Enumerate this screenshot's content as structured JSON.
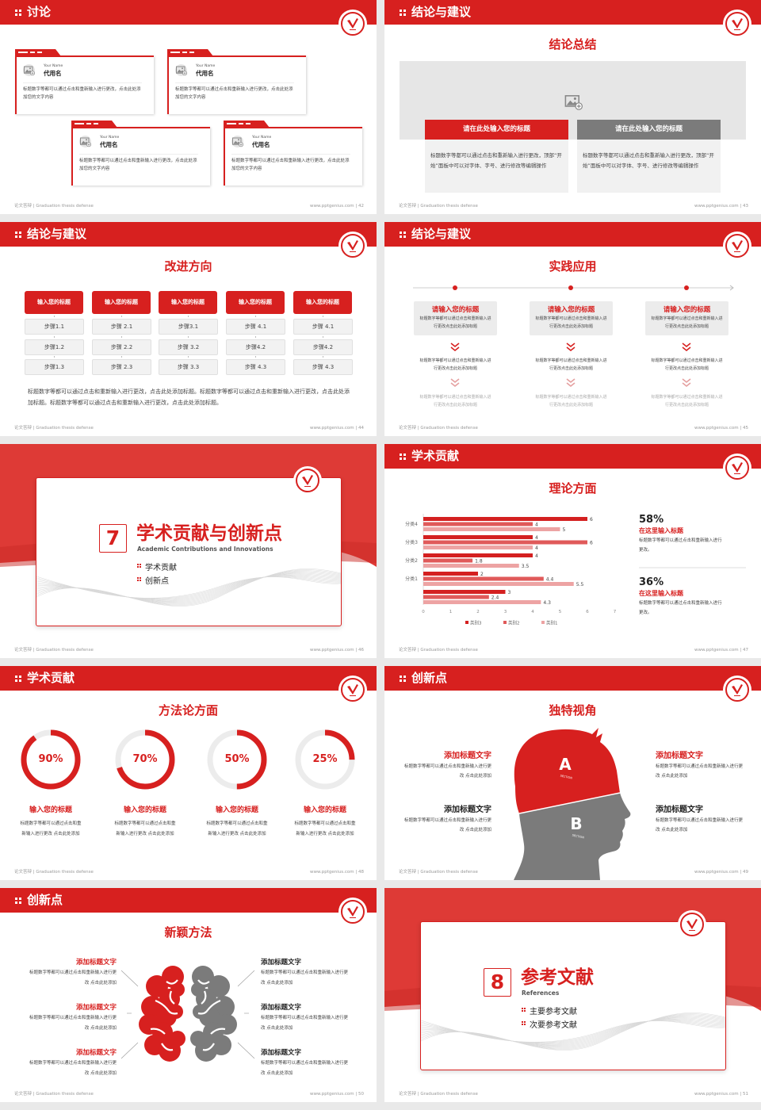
{
  "footer": {
    "left": "论文答辩 | Graduation thesis defense",
    "url": "www.pptgenius.com"
  },
  "colors": {
    "accent": "#d7201f",
    "gray": "#7f7f7f",
    "light": "#f1f1f1"
  },
  "slides": [
    {
      "page": "42",
      "title": "讨论",
      "cards": [
        {
          "name_label": "Your Name",
          "name": "代用名",
          "text": "标题数字等都可以通过点击和重新输入进行更改，点击此处添加您的文字内容",
          "icon": "image-placeholder-icon"
        },
        {
          "name_label": "Your Name",
          "name": "代用名",
          "text": "标题数字等都可以通过点击和重新输入进行更改，点击此处添加您的文字内容",
          "icon": "image-placeholder-icon"
        },
        {
          "name_label": "Your Name",
          "name": "代用名",
          "text": "标题数字等都可以通过点击和重新输入进行更改，点击此处添加您的文字内容",
          "icon": "image-placeholder-icon"
        },
        {
          "name_label": "Your Name",
          "name": "代用名",
          "text": "标题数字等都可以通过点击和重新输入进行更改，点击此处添加您的文字内容",
          "icon": "image-placeholder-icon"
        }
      ]
    },
    {
      "page": "43",
      "title": "结论与建议",
      "subtitle": "结论总结",
      "boxes": [
        {
          "title": "请在此处输入您的标题",
          "text": "标题数字等都可以通过点击和重新输入进行更改，顶部“开始”面板中可以对字体、字号、进行修改等编辑操作"
        },
        {
          "title": "请在此处输入您的标题",
          "text": "标题数字等都可以通过点击和重新输入进行更改，顶部“开始”面板中可以对字体、字号、进行修改等编辑操作"
        }
      ]
    },
    {
      "page": "44",
      "title": "结论与建议",
      "subtitle": "改进方向",
      "columns": [
        {
          "title": "输入您的标题",
          "steps": [
            "步骤1.1",
            "步骤1.2",
            "步骤1.3"
          ]
        },
        {
          "title": "输入您的标题",
          "steps": [
            "步骤 2.1",
            "步骤 2.2",
            "步骤 2.3"
          ]
        },
        {
          "title": "输入您的标题",
          "steps": [
            "步骤3.1",
            "步骤 3.2",
            "步骤 3.3"
          ]
        },
        {
          "title": "输入您的标题",
          "steps": [
            "步骤 4.1",
            "步骤4.2",
            "步骤 4.3"
          ]
        },
        {
          "title": "输入您的标题",
          "steps": [
            "步骤 4.1",
            "步骤4.2",
            "步骤 4.3"
          ]
        }
      ],
      "paragraph": "标题数字等都可以通过点击和重新输入进行更改，点击此处添加标题。标题数字等都可以通过点击和重新输入进行更改，点击此处添加标题。标题数字等都可以通过点击和重新输入进行更改，点击此处添加标题。"
    },
    {
      "page": "45",
      "title": "结论与建议",
      "subtitle": "实践应用",
      "columns": [
        {
          "title": "请输入您的标题",
          "desc": "标题数字等都可以通过点击和重新输入进行更改点击此处添加标题",
          "step2": "标题数字等都可以通过点击和重新输入进行更改点击此处添加标题",
          "step3": "标题数字等都可以通过点击和重新输入进行更改点击此处添加标题"
        },
        {
          "title": "请输入您的标题",
          "desc": "标题数字等都可以通过点击和重新输入进行更改点击此处添加标题",
          "step2": "标题数字等都可以通过点击和重新输入进行更改点击此处添加标题",
          "step3": "标题数字等都可以通过点击和重新输入进行更改点击此处添加标题"
        },
        {
          "title": "请输入您的标题",
          "desc": "标题数字等都可以通过点击和重新输入进行更改点击此处添加标题",
          "step2": "标题数字等都可以通过点击和重新输入进行更改点击此处添加标题",
          "step3": "标题数字等都可以通过点击和重新输入进行更改点击此处添加标题"
        }
      ]
    },
    {
      "page": "46",
      "section": true,
      "number": "7",
      "title_cn": "学术贡献与创新点",
      "title_en": "Academic Contributions and Innovations",
      "bullets": [
        "学术贡献",
        "创新点"
      ]
    },
    {
      "page": "47",
      "title": "学术贡献",
      "subtitle": "理论方面",
      "stats": [
        {
          "value": "58%",
          "heading": "在这里输入标题",
          "text": "标题数字等都可以通过点击和重新输入进行更改。"
        },
        {
          "value": "36%",
          "heading": "在这里输入标题",
          "text": "标题数字等都可以通过点击和重新输入进行更改。"
        }
      ]
    },
    {
      "page": "48",
      "title": "学术贡献",
      "subtitle": "方法论方面",
      "rings": [
        {
          "percent": 90,
          "label": "90%",
          "title": "输入您的标题",
          "text": "标题数字等都可以通过点击和重新输入进行更改 点击此处添加"
        },
        {
          "percent": 70,
          "label": "70%",
          "title": "输入您的标题",
          "text": "标题数字等都可以通过点击和重新输入进行更改 点击此处添加"
        },
        {
          "percent": 50,
          "label": "50%",
          "title": "输入您的标题",
          "text": "标题数字等都可以通过点击和重新输入进行更改 点击此处添加"
        },
        {
          "percent": 25,
          "label": "25%",
          "title": "输入您的标题",
          "text": "标题数字等都可以通过点击和重新输入进行更改 点击此处添加"
        }
      ]
    },
    {
      "page": "49",
      "title": "创新点",
      "subtitle": "独特视角",
      "head": {
        "a": "A",
        "b": "B",
        "section": "SECTION"
      },
      "blocks": [
        {
          "title": "添加标题文字",
          "text": "标题数字等都可以通过点击和重新输入进行更改 点击此处添加",
          "accent": true
        },
        {
          "title": "添加标题文字",
          "text": "标题数字等都可以通过点击和重新输入进行更改 点击此处添加",
          "accent": false
        },
        {
          "title": "添加标题文字",
          "text": "标题数字等都可以通过点击和重新输入进行更改 点击此处添加",
          "accent": true
        },
        {
          "title": "添加标题文字",
          "text": "标题数字等都可以通过点击和重新输入进行更改 点击此处添加",
          "accent": false
        }
      ]
    },
    {
      "page": "50",
      "title": "创新点",
      "subtitle": "新颖方法",
      "blocks": [
        {
          "title": "添加标题文字",
          "text": "标题数字等都可以通过点击和重新输入进行更改 点击此处添加",
          "accent": true
        },
        {
          "title": "添加标题文字",
          "text": "标题数字等都可以通过点击和重新输入进行更改 点击此处添加",
          "accent": true
        },
        {
          "title": "添加标题文字",
          "text": "标题数字等都可以通过点击和重新输入进行更改 点击此处添加",
          "accent": true
        },
        {
          "title": "添加标题文字",
          "text": "标题数字等都可以通过点击和重新输入进行更改 点击此处添加",
          "accent": false
        },
        {
          "title": "添加标题文字",
          "text": "标题数字等都可以通过点击和重新输入进行更改 点击此处添加",
          "accent": false
        },
        {
          "title": "添加标题文字",
          "text": "标题数字等都可以通过点击和重新输入进行更改 点击此处添加",
          "accent": false
        }
      ]
    },
    {
      "page": "51",
      "section": true,
      "number": "8",
      "title_cn": "参考文献",
      "title_en": "References",
      "bullets": [
        "主要参考文献",
        "次要参考文献"
      ]
    }
  ],
  "chart_data": {
    "type": "bar",
    "orientation": "horizontal",
    "categories": [
      "",
      "分类1",
      "分类2",
      "分类3",
      "分类4"
    ],
    "series": [
      {
        "name": "类别3",
        "color": "#d42020",
        "values": [
          3,
          2,
          4,
          4,
          6
        ]
      },
      {
        "name": "类别2",
        "color": "#e05a5a",
        "values": [
          2.4,
          4.4,
          1.8,
          6,
          4
        ]
      },
      {
        "name": "类别1",
        "color": "#eda3a3",
        "values": [
          4.3,
          5.5,
          3.5,
          4,
          5
        ]
      }
    ],
    "xlim": [
      0,
      7
    ],
    "xticks": [
      "0",
      "1",
      "2",
      "3",
      "4",
      "5",
      "6",
      "7"
    ],
    "data_labels": true,
    "grid": false,
    "legend": "bottom"
  }
}
